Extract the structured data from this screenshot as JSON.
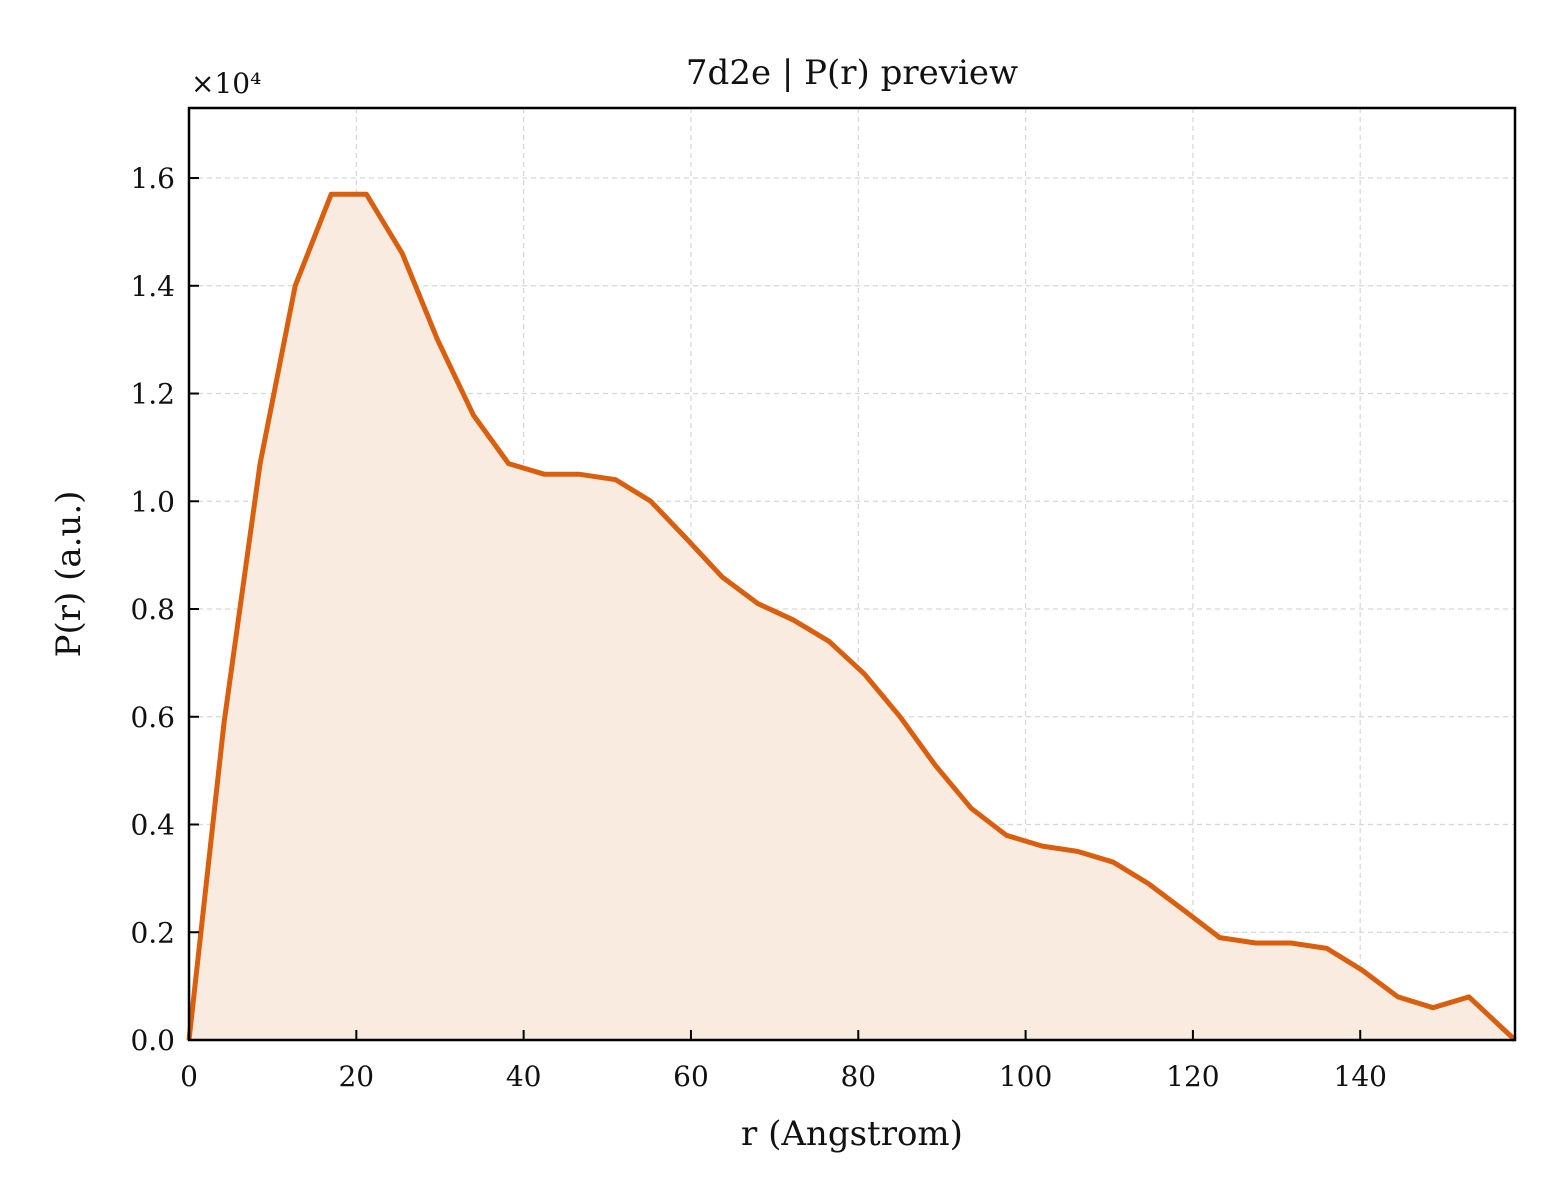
{
  "chart_data": {
    "type": "area",
    "title": "7d2e | P(r) preview",
    "xlabel": "r (Angstrom)",
    "ylabel": "P(r) (a.u.)",
    "y_offset_label": "×10⁴",
    "xlim": [
      0,
      158.5
    ],
    "ylim": [
      0,
      1.73
    ],
    "x_ticks": [
      0,
      20,
      40,
      60,
      80,
      100,
      120,
      140
    ],
    "x_tick_labels": [
      "0",
      "20",
      "40",
      "60",
      "80",
      "100",
      "120",
      "140"
    ],
    "y_ticks": [
      0,
      0.2,
      0.4,
      0.6,
      0.8,
      1.0,
      1.2,
      1.4,
      1.6
    ],
    "y_tick_labels": [
      "0.0",
      "0.2",
      "0.4",
      "0.6",
      "0.8",
      "1.0",
      "1.2",
      "1.4",
      "1.6"
    ],
    "grid": true,
    "legend": "none",
    "line_color": "#d95f0e",
    "fill_color": "#f9ebe0",
    "series": [
      {
        "x": [
          0,
          4.2,
          8.5,
          12.7,
          17.0,
          21.2,
          25.5,
          29.7,
          34.0,
          38.2,
          42.5,
          46.7,
          51.0,
          55.2,
          59.5,
          63.7,
          68.0,
          72.2,
          76.5,
          80.7,
          85.0,
          89.2,
          93.5,
          97.7,
          102.0,
          106.2,
          110.5,
          114.7,
          119.0,
          123.2,
          127.5,
          131.7,
          136.0,
          140.2,
          144.5,
          148.7,
          153.0,
          158.5
        ],
        "y": [
          0.0,
          0.59,
          1.07,
          1.4,
          1.57,
          1.57,
          1.46,
          1.3,
          1.16,
          1.07,
          1.05,
          1.05,
          1.04,
          1.0,
          0.93,
          0.86,
          0.81,
          0.78,
          0.74,
          0.68,
          0.6,
          0.51,
          0.43,
          0.38,
          0.36,
          0.35,
          0.33,
          0.29,
          0.24,
          0.19,
          0.18,
          0.18,
          0.17,
          0.13,
          0.08,
          0.06,
          0.08,
          0.0
        ]
      }
    ]
  }
}
